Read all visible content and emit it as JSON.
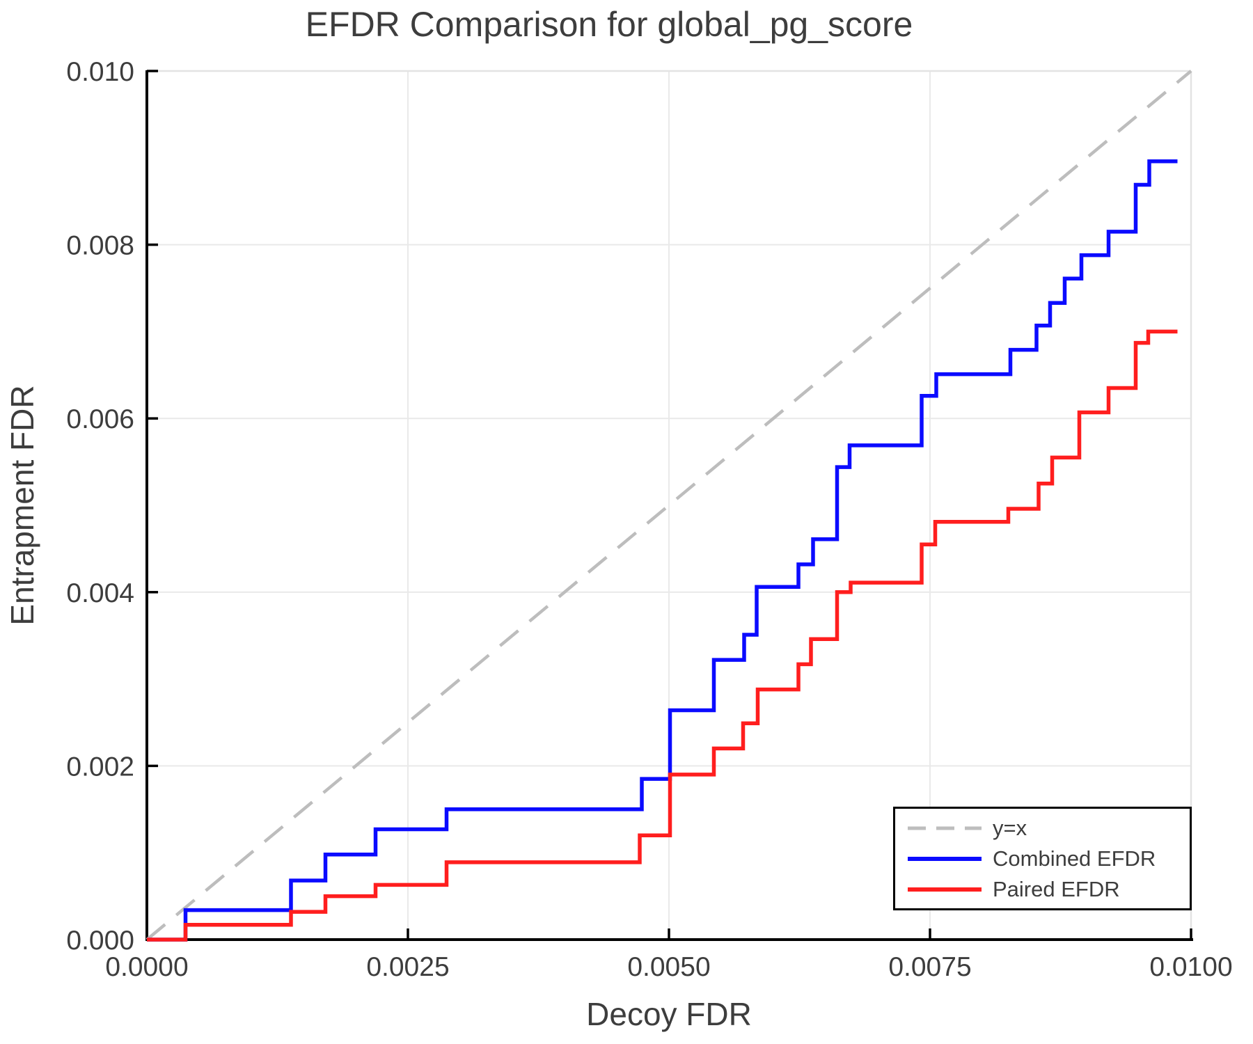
{
  "chart_data": {
    "type": "line",
    "subtype": "step",
    "title": "EFDR Comparison for global_pg_score",
    "xlabel": "Decoy FDR",
    "ylabel": "Entrapment FDR",
    "xlim": [
      0.0,
      0.01
    ],
    "ylim": [
      0.0,
      0.01
    ],
    "xticks": [
      0.0,
      0.0025,
      0.005,
      0.0075,
      0.01
    ],
    "xtick_labels": [
      "0.0000",
      "0.0025",
      "0.0050",
      "0.0075",
      "0.0100"
    ],
    "yticks": [
      0.0,
      0.002,
      0.004,
      0.006,
      0.008,
      0.01
    ],
    "ytick_labels": [
      "0.000",
      "0.002",
      "0.004",
      "0.006",
      "0.008",
      "0.010"
    ],
    "grid": true,
    "grid_color": "#e9e9e9",
    "spine_color": "#000000",
    "minor_spine_color": "#e3e3e3",
    "text_color": "#3d3d3d",
    "reference_line": {
      "name": "y=x",
      "style": "dashed",
      "color": "#bdbdbd",
      "from": [
        0.0,
        0.0
      ],
      "to": [
        0.01,
        0.01
      ]
    },
    "series": [
      {
        "name": "Combined EFDR",
        "color": "#0b0bff",
        "step": true,
        "points": [
          [
            0.0,
            0.0
          ],
          [
            0.00037,
            0.00034
          ],
          [
            0.00138,
            0.00068
          ],
          [
            0.00171,
            0.00098
          ],
          [
            0.00219,
            0.00127
          ],
          [
            0.00287,
            0.0015
          ],
          [
            0.00474,
            0.00185
          ],
          [
            0.00501,
            0.00264
          ],
          [
            0.00543,
            0.00322
          ],
          [
            0.00572,
            0.00351
          ],
          [
            0.00584,
            0.00406
          ],
          [
            0.00624,
            0.00432
          ],
          [
            0.00638,
            0.00461
          ],
          [
            0.00661,
            0.00544
          ],
          [
            0.00673,
            0.00569
          ],
          [
            0.00742,
            0.00626
          ],
          [
            0.00756,
            0.00651
          ],
          [
            0.00827,
            0.00679
          ],
          [
            0.00852,
            0.00707
          ],
          [
            0.00865,
            0.00733
          ],
          [
            0.00879,
            0.00761
          ],
          [
            0.00895,
            0.00788
          ],
          [
            0.00921,
            0.00815
          ],
          [
            0.00947,
            0.00869
          ],
          [
            0.0096,
            0.00896
          ],
          [
            0.00987,
            0.00896
          ]
        ]
      },
      {
        "name": "Paired EFDR",
        "color": "#ff1e1e",
        "step": true,
        "points": [
          [
            0.0,
            0.0
          ],
          [
            0.00037,
            0.00017
          ],
          [
            0.00138,
            0.00032
          ],
          [
            0.00171,
            0.0005
          ],
          [
            0.00219,
            0.00063
          ],
          [
            0.00287,
            0.00089
          ],
          [
            0.00472,
            0.0012
          ],
          [
            0.00501,
            0.0019
          ],
          [
            0.00543,
            0.0022
          ],
          [
            0.00571,
            0.00249
          ],
          [
            0.00585,
            0.00288
          ],
          [
            0.00624,
            0.00317
          ],
          [
            0.00636,
            0.00346
          ],
          [
            0.00661,
            0.004
          ],
          [
            0.00674,
            0.00411
          ],
          [
            0.00742,
            0.00455
          ],
          [
            0.00755,
            0.00481
          ],
          [
            0.00825,
            0.00496
          ],
          [
            0.00854,
            0.00525
          ],
          [
            0.00867,
            0.00555
          ],
          [
            0.00893,
            0.00607
          ],
          [
            0.00921,
            0.00635
          ],
          [
            0.00947,
            0.00687
          ],
          [
            0.00959,
            0.007
          ],
          [
            0.00987,
            0.007
          ]
        ]
      }
    ],
    "legend": {
      "position": "lower right",
      "entries": [
        {
          "label": "y=x",
          "color": "#bdbdbd",
          "dashed": true
        },
        {
          "label": "Combined EFDR",
          "color": "#0b0bff",
          "dashed": false
        },
        {
          "label": "Paired EFDR",
          "color": "#ff1e1e",
          "dashed": false
        }
      ]
    }
  }
}
